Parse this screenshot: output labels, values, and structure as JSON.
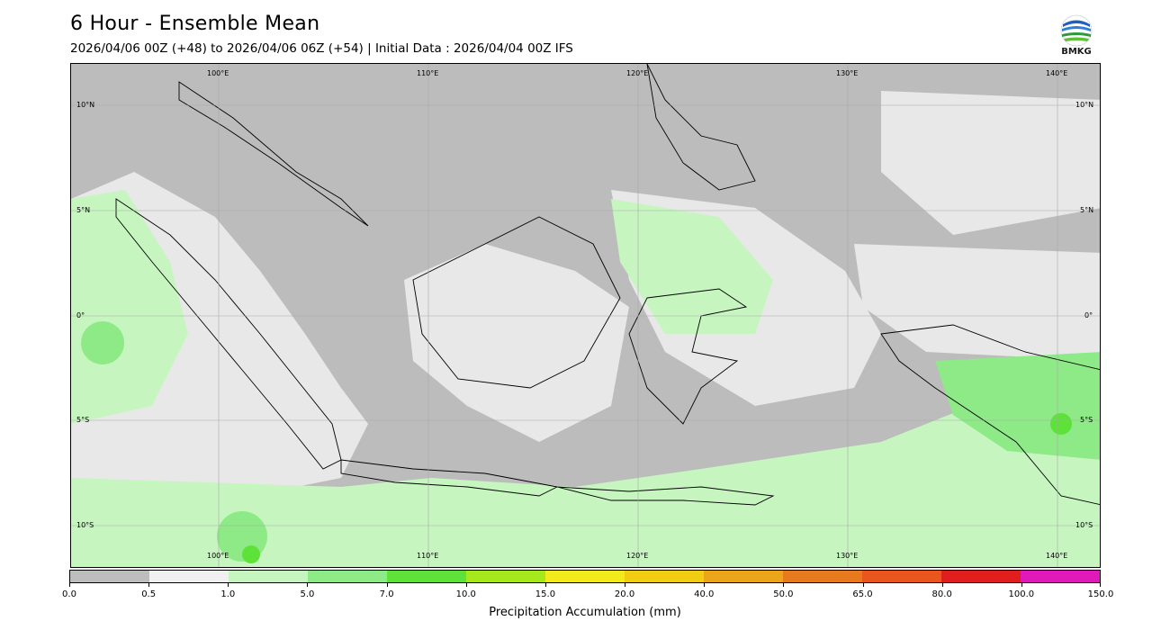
{
  "header": {
    "title": "6 Hour - Ensemble Mean",
    "subtitle": "2026/04/06 00Z (+48) to 2026/04/06 06Z (+54) | Initial Data : 2026/04/04 00Z IFS"
  },
  "logo": {
    "text": "BMKG",
    "icon": "bmkg-logo"
  },
  "map": {
    "lon_labels": [
      "100°E",
      "110°E",
      "120°E",
      "130°E",
      "140°E"
    ],
    "lat_labels": [
      "10°N",
      "5°N",
      "0°",
      "5°S",
      "10°S"
    ]
  },
  "colorbar": {
    "ticks": [
      "0.0",
      "0.5",
      "1.0",
      "5.0",
      "7.0",
      "10.0",
      "15.0",
      "20.0",
      "40.0",
      "50.0",
      "65.0",
      "80.0",
      "100.0",
      "150.0"
    ],
    "colors": [
      "#bdbdbd",
      "#f0f0f0",
      "#c6f5c0",
      "#8eea86",
      "#5ee23a",
      "#a5e81c",
      "#f2ea1a",
      "#f0cc12",
      "#eaa51a",
      "#e87a1e",
      "#e8561e",
      "#e01e1e",
      "#e01ab8"
    ],
    "label": "Precipitation Accumulation (mm)"
  }
}
